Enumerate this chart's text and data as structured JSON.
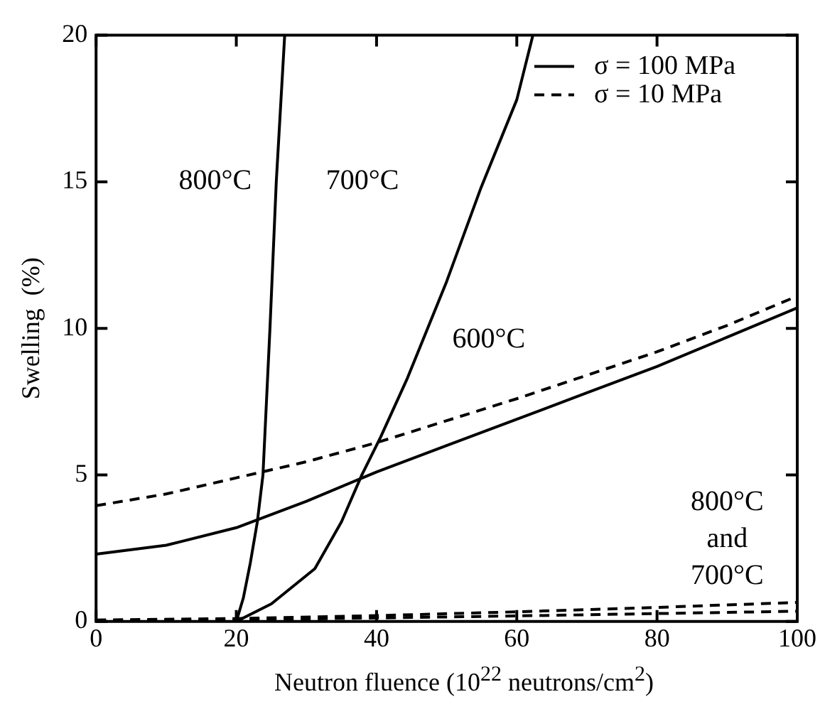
{
  "chart_data": {
    "type": "line",
    "xlabel": "Neutron fluence (10$^{22}$ neutrons/cm$^{2}$)",
    "ylabel": "Swelling  (%)",
    "series": [
      {
        "name": "σ = 100 MPa",
        "color": "#000000",
        "line_style": "solid",
        "x": [
          0,
          10,
          20,
          30,
          40,
          50,
          60,
          70,
          80,
          90,
          100
        ],
        "values": [
          2.3,
          2.6,
          3.2,
          4.1,
          5.1,
          6.0,
          6.9,
          7.8,
          8.7,
          9.7,
          10.7
        ]
      },
      {
        "name": "σ = 10 MPa",
        "color": "#000000",
        "line_style": "dashed",
        "x": [
          0,
          10,
          20,
          30,
          40,
          50,
          60,
          70,
          80,
          90,
          100
        ],
        "values": [
          3.95,
          4.35,
          4.9,
          5.45,
          6.1,
          6.85,
          7.6,
          8.4,
          9.2,
          10.1,
          11.1
        ]
      },
      {
        "color": "#000000",
        "line_style": "solid",
        "x": [
          20,
          21,
          22,
          23,
          23.8,
          24.8,
          25.7,
          26.9
        ],
        "values": [
          0,
          0.8,
          2,
          3.4,
          5,
          10,
          15,
          20
        ]
      },
      {
        "color": "#000000",
        "line_style": "solid",
        "x": [
          20,
          25,
          31.2,
          35,
          37.9,
          40.6,
          44.4,
          50,
          54.9,
          60,
          62.3
        ],
        "values": [
          0,
          0.6,
          1.8,
          3.4,
          5,
          6.3,
          8.3,
          11.6,
          14.8,
          17.8,
          20
        ]
      },
      {
        "color": "#000000",
        "line_style": "dashed",
        "x": [
          0,
          20,
          40,
          60,
          80,
          100
        ],
        "values": [
          0.05,
          0.1,
          0.2,
          0.33,
          0.48,
          0.65
        ]
      },
      {
        "color": "#000000",
        "line_style": "dashed",
        "x": [
          0,
          20,
          40,
          60,
          80,
          100
        ],
        "values": [
          0.03,
          0.06,
          0.12,
          0.19,
          0.27,
          0.35
        ]
      }
    ],
    "xlim": [
      0,
      100
    ],
    "xticks": [
      0,
      20,
      40,
      60,
      80,
      100
    ],
    "ylim": [
      0,
      20
    ],
    "yticks": [
      0,
      5,
      10,
      15,
      20
    ],
    "grid": false,
    "legend": "top right",
    "marker": "none",
    "annotations": [
      "800°C",
      "700°C",
      "600°C",
      "800°C\nand\n700°C"
    ]
  }
}
